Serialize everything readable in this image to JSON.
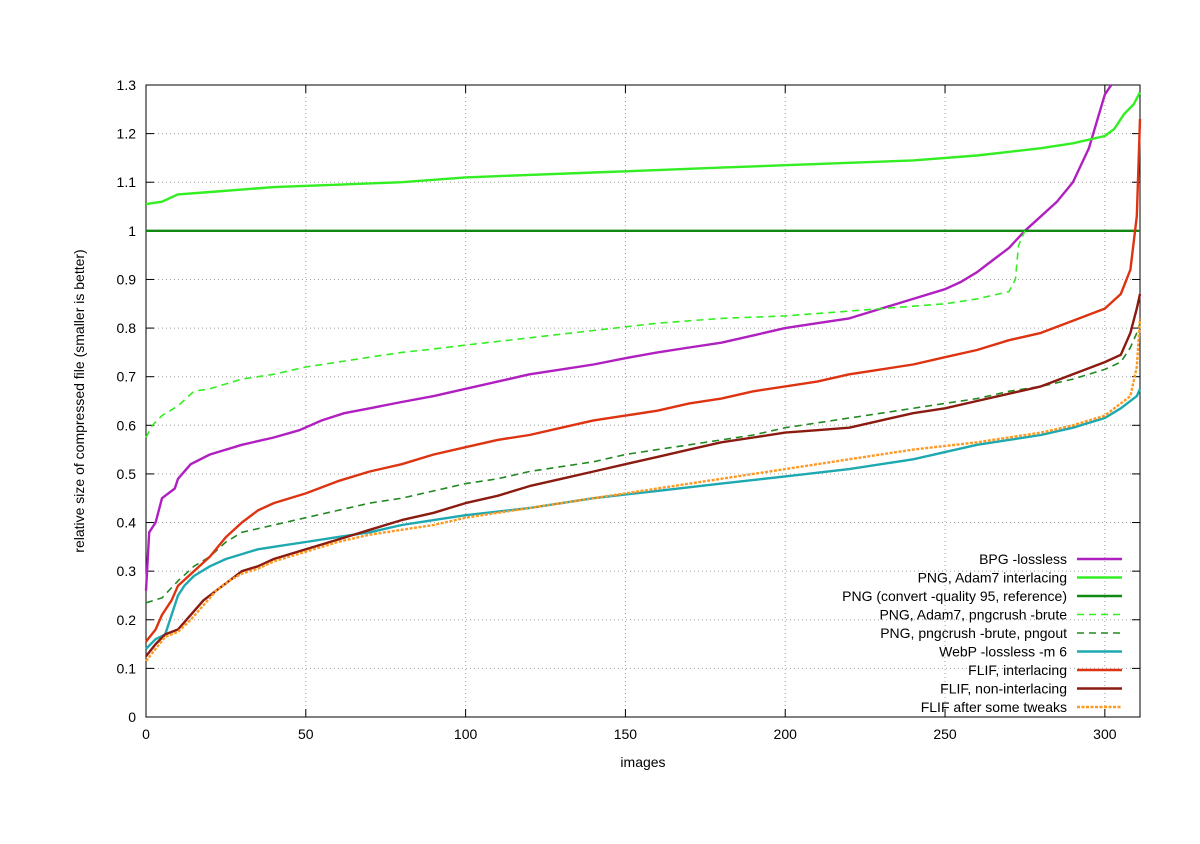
{
  "chart_data": {
    "type": "line",
    "title": "",
    "xlabel": "images",
    "ylabel": "relative size of compressed file (smaller is better)",
    "xlim": [
      0,
      311
    ],
    "ylim": [
      0,
      1.3
    ],
    "xticks": [
      0,
      50,
      100,
      150,
      200,
      250,
      300
    ],
    "yticks": [
      0,
      0.1,
      0.2,
      0.3,
      0.4,
      0.5,
      0.6,
      0.7,
      0.8,
      0.9,
      1,
      1.1,
      1.2,
      1.3
    ],
    "grid": true,
    "legend_position": "bottom-right",
    "series": [
      {
        "name": "BPG -lossless",
        "color": "#b01fc0",
        "dash": "solid",
        "points": [
          [
            0,
            0.26
          ],
          [
            1,
            0.38
          ],
          [
            3,
            0.4
          ],
          [
            5,
            0.45
          ],
          [
            9,
            0.47
          ],
          [
            10,
            0.49
          ],
          [
            14,
            0.52
          ],
          [
            20,
            0.54
          ],
          [
            30,
            0.56
          ],
          [
            40,
            0.575
          ],
          [
            48,
            0.59
          ],
          [
            55,
            0.61
          ],
          [
            62,
            0.625
          ],
          [
            70,
            0.635
          ],
          [
            80,
            0.648
          ],
          [
            90,
            0.66
          ],
          [
            100,
            0.675
          ],
          [
            110,
            0.69
          ],
          [
            120,
            0.705
          ],
          [
            130,
            0.715
          ],
          [
            140,
            0.725
          ],
          [
            150,
            0.738
          ],
          [
            160,
            0.75
          ],
          [
            170,
            0.76
          ],
          [
            180,
            0.77
          ],
          [
            190,
            0.785
          ],
          [
            200,
            0.8
          ],
          [
            210,
            0.81
          ],
          [
            220,
            0.82
          ],
          [
            230,
            0.84
          ],
          [
            240,
            0.86
          ],
          [
            250,
            0.88
          ],
          [
            255,
            0.895
          ],
          [
            260,
            0.915
          ],
          [
            265,
            0.94
          ],
          [
            270,
            0.965
          ],
          [
            275,
            1.0
          ],
          [
            280,
            1.03
          ],
          [
            285,
            1.06
          ],
          [
            290,
            1.1
          ],
          [
            295,
            1.17
          ],
          [
            300,
            1.28
          ],
          [
            302,
            1.3
          ]
        ]
      },
      {
        "name": "PNG, Adam7 interlacing",
        "color": "#33ee22",
        "dash": "solid",
        "points": [
          [
            0,
            1.055
          ],
          [
            5,
            1.06
          ],
          [
            10,
            1.075
          ],
          [
            20,
            1.08
          ],
          [
            40,
            1.09
          ],
          [
            60,
            1.095
          ],
          [
            80,
            1.1
          ],
          [
            100,
            1.11
          ],
          [
            120,
            1.115
          ],
          [
            140,
            1.12
          ],
          [
            160,
            1.125
          ],
          [
            180,
            1.13
          ],
          [
            200,
            1.135
          ],
          [
            220,
            1.14
          ],
          [
            240,
            1.145
          ],
          [
            260,
            1.155
          ],
          [
            280,
            1.17
          ],
          [
            290,
            1.18
          ],
          [
            300,
            1.195
          ],
          [
            303,
            1.21
          ],
          [
            306,
            1.24
          ],
          [
            309,
            1.26
          ],
          [
            311,
            1.285
          ]
        ]
      },
      {
        "name": "PNG (convert -quality 95, reference)",
        "color": "#118811",
        "dash": "solid",
        "points": [
          [
            0,
            1.0
          ],
          [
            311,
            1.0
          ]
        ]
      },
      {
        "name": "PNG, Adam7, pngcrush -brute",
        "color": "#33ee22",
        "dash": "dashed",
        "points": [
          [
            0,
            0.575
          ],
          [
            2,
            0.6
          ],
          [
            5,
            0.62
          ],
          [
            10,
            0.64
          ],
          [
            15,
            0.67
          ],
          [
            20,
            0.675
          ],
          [
            30,
            0.695
          ],
          [
            40,
            0.705
          ],
          [
            50,
            0.72
          ],
          [
            60,
            0.73
          ],
          [
            70,
            0.74
          ],
          [
            80,
            0.75
          ],
          [
            90,
            0.757
          ],
          [
            100,
            0.765
          ],
          [
            120,
            0.78
          ],
          [
            140,
            0.795
          ],
          [
            160,
            0.81
          ],
          [
            180,
            0.82
          ],
          [
            200,
            0.825
          ],
          [
            220,
            0.835
          ],
          [
            240,
            0.845
          ],
          [
            250,
            0.85
          ],
          [
            260,
            0.86
          ],
          [
            270,
            0.875
          ],
          [
            272,
            0.9
          ],
          [
            273,
            0.97
          ],
          [
            275,
            1.0
          ]
        ]
      },
      {
        "name": "PNG, pngcrush -brute, pngout",
        "color": "#228822",
        "dash": "dashed",
        "points": [
          [
            0,
            0.235
          ],
          [
            5,
            0.245
          ],
          [
            10,
            0.28
          ],
          [
            15,
            0.31
          ],
          [
            20,
            0.33
          ],
          [
            25,
            0.36
          ],
          [
            30,
            0.38
          ],
          [
            40,
            0.395
          ],
          [
            50,
            0.41
          ],
          [
            60,
            0.425
          ],
          [
            70,
            0.44
          ],
          [
            80,
            0.45
          ],
          [
            90,
            0.465
          ],
          [
            100,
            0.48
          ],
          [
            110,
            0.49
          ],
          [
            120,
            0.505
          ],
          [
            130,
            0.515
          ],
          [
            140,
            0.525
          ],
          [
            150,
            0.54
          ],
          [
            160,
            0.55
          ],
          [
            170,
            0.56
          ],
          [
            180,
            0.57
          ],
          [
            190,
            0.58
          ],
          [
            200,
            0.595
          ],
          [
            210,
            0.605
          ],
          [
            220,
            0.615
          ],
          [
            230,
            0.625
          ],
          [
            240,
            0.635
          ],
          [
            250,
            0.645
          ],
          [
            260,
            0.655
          ],
          [
            270,
            0.67
          ],
          [
            280,
            0.68
          ],
          [
            290,
            0.695
          ],
          [
            300,
            0.715
          ],
          [
            305,
            0.73
          ],
          [
            308,
            0.76
          ],
          [
            310,
            0.79
          ],
          [
            311,
            0.81
          ]
        ]
      },
      {
        "name": "WebP -lossless -m 6",
        "color": "#1ea8b0",
        "dash": "solid",
        "points": [
          [
            0,
            0.14
          ],
          [
            3,
            0.16
          ],
          [
            6,
            0.17
          ],
          [
            8,
            0.21
          ],
          [
            10,
            0.25
          ],
          [
            12,
            0.27
          ],
          [
            15,
            0.29
          ],
          [
            20,
            0.31
          ],
          [
            25,
            0.325
          ],
          [
            30,
            0.335
          ],
          [
            35,
            0.345
          ],
          [
            40,
            0.35
          ],
          [
            50,
            0.36
          ],
          [
            60,
            0.37
          ],
          [
            70,
            0.38
          ],
          [
            80,
            0.395
          ],
          [
            90,
            0.405
          ],
          [
            100,
            0.415
          ],
          [
            120,
            0.43
          ],
          [
            140,
            0.45
          ],
          [
            160,
            0.465
          ],
          [
            180,
            0.48
          ],
          [
            200,
            0.495
          ],
          [
            220,
            0.51
          ],
          [
            240,
            0.53
          ],
          [
            260,
            0.56
          ],
          [
            280,
            0.58
          ],
          [
            290,
            0.595
          ],
          [
            300,
            0.615
          ],
          [
            305,
            0.635
          ],
          [
            310,
            0.66
          ],
          [
            311,
            0.675
          ]
        ]
      },
      {
        "name": "FLIF, interlacing",
        "color": "#dd3311",
        "dash": "solid",
        "points": [
          [
            0,
            0.155
          ],
          [
            3,
            0.18
          ],
          [
            5,
            0.21
          ],
          [
            8,
            0.24
          ],
          [
            10,
            0.27
          ],
          [
            15,
            0.3
          ],
          [
            20,
            0.33
          ],
          [
            25,
            0.37
          ],
          [
            30,
            0.4
          ],
          [
            35,
            0.425
          ],
          [
            40,
            0.44
          ],
          [
            50,
            0.46
          ],
          [
            60,
            0.485
          ],
          [
            70,
            0.505
          ],
          [
            80,
            0.52
          ],
          [
            90,
            0.54
          ],
          [
            100,
            0.555
          ],
          [
            110,
            0.57
          ],
          [
            120,
            0.58
          ],
          [
            130,
            0.595
          ],
          [
            140,
            0.61
          ],
          [
            150,
            0.62
          ],
          [
            160,
            0.63
          ],
          [
            170,
            0.645
          ],
          [
            180,
            0.655
          ],
          [
            190,
            0.67
          ],
          [
            200,
            0.68
          ],
          [
            210,
            0.69
          ],
          [
            220,
            0.705
          ],
          [
            230,
            0.715
          ],
          [
            240,
            0.725
          ],
          [
            250,
            0.74
          ],
          [
            260,
            0.755
          ],
          [
            270,
            0.775
          ],
          [
            280,
            0.79
          ],
          [
            290,
            0.815
          ],
          [
            300,
            0.84
          ],
          [
            305,
            0.87
          ],
          [
            308,
            0.92
          ],
          [
            310,
            1.03
          ],
          [
            311,
            1.23
          ]
        ]
      },
      {
        "name": "FLIF, non-interlacing",
        "color": "#8b1a10",
        "dash": "solid",
        "points": [
          [
            0,
            0.125
          ],
          [
            3,
            0.15
          ],
          [
            6,
            0.17
          ],
          [
            10,
            0.18
          ],
          [
            14,
            0.21
          ],
          [
            18,
            0.24
          ],
          [
            22,
            0.26
          ],
          [
            26,
            0.28
          ],
          [
            30,
            0.3
          ],
          [
            35,
            0.31
          ],
          [
            40,
            0.325
          ],
          [
            50,
            0.345
          ],
          [
            60,
            0.365
          ],
          [
            70,
            0.385
          ],
          [
            80,
            0.405
          ],
          [
            90,
            0.42
          ],
          [
            100,
            0.44
          ],
          [
            110,
            0.455
          ],
          [
            120,
            0.475
          ],
          [
            130,
            0.49
          ],
          [
            140,
            0.505
          ],
          [
            150,
            0.52
          ],
          [
            160,
            0.535
          ],
          [
            170,
            0.55
          ],
          [
            180,
            0.565
          ],
          [
            190,
            0.575
          ],
          [
            200,
            0.585
          ],
          [
            210,
            0.59
          ],
          [
            220,
            0.595
          ],
          [
            230,
            0.61
          ],
          [
            240,
            0.625
          ],
          [
            250,
            0.635
          ],
          [
            260,
            0.65
          ],
          [
            270,
            0.665
          ],
          [
            280,
            0.68
          ],
          [
            290,
            0.705
          ],
          [
            300,
            0.73
          ],
          [
            305,
            0.745
          ],
          [
            308,
            0.79
          ],
          [
            310,
            0.84
          ],
          [
            311,
            0.87
          ]
        ]
      },
      {
        "name": "FLIF after some tweaks",
        "color": "#ff9922",
        "dash": "dotted",
        "points": [
          [
            0,
            0.115
          ],
          [
            3,
            0.14
          ],
          [
            6,
            0.165
          ],
          [
            10,
            0.175
          ],
          [
            14,
            0.2
          ],
          [
            18,
            0.23
          ],
          [
            22,
            0.26
          ],
          [
            26,
            0.28
          ],
          [
            30,
            0.295
          ],
          [
            35,
            0.305
          ],
          [
            40,
            0.32
          ],
          [
            50,
            0.34
          ],
          [
            60,
            0.36
          ],
          [
            70,
            0.375
          ],
          [
            80,
            0.385
          ],
          [
            90,
            0.395
          ],
          [
            100,
            0.41
          ],
          [
            120,
            0.43
          ],
          [
            140,
            0.45
          ],
          [
            160,
            0.47
          ],
          [
            180,
            0.49
          ],
          [
            200,
            0.51
          ],
          [
            220,
            0.53
          ],
          [
            240,
            0.55
          ],
          [
            260,
            0.565
          ],
          [
            280,
            0.585
          ],
          [
            290,
            0.6
          ],
          [
            300,
            0.62
          ],
          [
            305,
            0.645
          ],
          [
            308,
            0.66
          ],
          [
            310,
            0.72
          ],
          [
            311,
            0.82
          ]
        ]
      }
    ]
  }
}
